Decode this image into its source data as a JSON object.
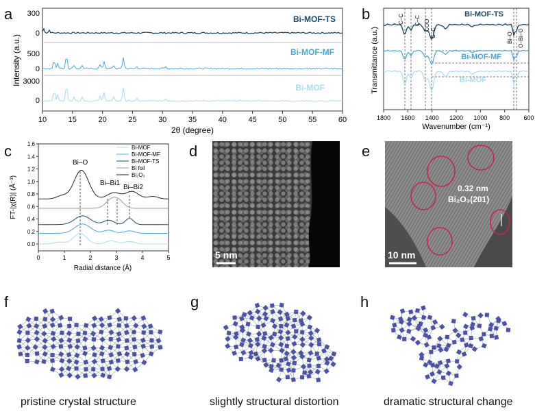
{
  "panel_labels": {
    "a": "a",
    "b": "b",
    "c": "c",
    "d": "d",
    "e": "e",
    "f": "f",
    "g": "g",
    "h": "h"
  },
  "colors": {
    "ts": "#1b4a6b",
    "mf": "#49a8dc",
    "mof": "#a6ddf2",
    "foil": "#999999",
    "bi2o3": "#222222",
    "circle": "#c8244d"
  },
  "panel_a": {
    "ylabel": "Intensity (a.u.)",
    "xlabel": "2θ (degree)",
    "xticks": [
      "10",
      "15",
      "20",
      "25",
      "30",
      "35",
      "40",
      "45",
      "50",
      "55",
      "60"
    ],
    "tracks": [
      {
        "name": "Bi-MOF-TS",
        "yticks": [
          "300",
          "0"
        ]
      },
      {
        "name": "Bi-MOF-MF",
        "yticks": [
          "500",
          "0"
        ]
      },
      {
        "name": "Bi-MOF",
        "yticks": [
          "3000",
          "0"
        ]
      }
    ]
  },
  "panel_b": {
    "ylabel": "Transmittance (a.u.)",
    "xlabel": "Wavenumber (cm⁻¹)",
    "xticks": [
      "1800",
      "1600",
      "1400",
      "1200",
      "1000",
      "800",
      "600"
    ],
    "series": [
      "Bi-MOF-TS",
      "Bi-MOF-MF",
      "Bi-MOF"
    ],
    "annotations": [
      "C–C",
      "C–C",
      "COO⁻",
      "C–C",
      "Bi–O",
      "O–Bi–O"
    ]
  },
  "panel_c": {
    "ylabel": "FT-|χ(R)| (Å⁻³)",
    "xlabel": "Radial distance (Å)",
    "xticks": [
      "0",
      "1",
      "2",
      "3",
      "4",
      "5"
    ],
    "yticks": [
      "0.0",
      "0.2",
      "0.4",
      "0.6",
      "0.8",
      "1.0",
      "1.2",
      "1.4",
      "1.6"
    ],
    "legend": [
      "Bi-MOF",
      "Bi-MOF-MF",
      "Bi-MOF-TS",
      "Bi foil",
      "Bi₂O₃"
    ],
    "annotations": [
      "Bi–O",
      "Bi–Bi1",
      "Bi–Bi2"
    ]
  },
  "panel_d": {
    "scale_bar": "5 nm"
  },
  "panel_e": {
    "scale_bar": "10 nm",
    "d_spacing": "0.32 nm",
    "plane": "Bi₂O₃(201)"
  },
  "captions": {
    "f": "pristine crystal structure",
    "g": "slightly structural distortion",
    "h": "dramatic structural change"
  }
}
